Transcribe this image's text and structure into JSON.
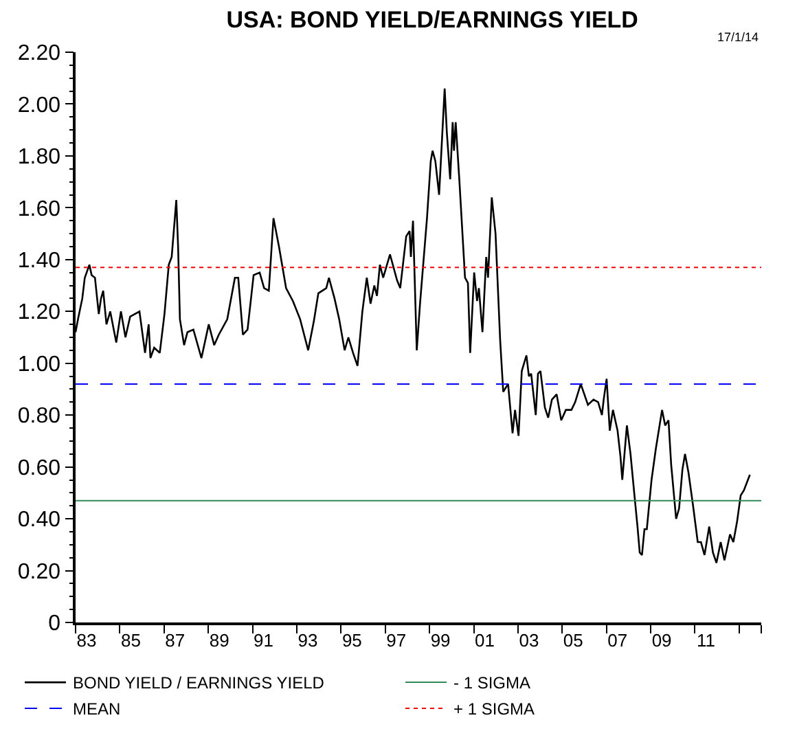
{
  "chart_data": {
    "type": "line",
    "title": "USA: BOND YIELD/EARNINGS YIELD",
    "annotations": [
      "17/1/14"
    ],
    "x": [
      "1983-01-01",
      "1983-02-10",
      "1983-04-22",
      "1983-06-02",
      "1983-08-17",
      "1983-09-23",
      "1983-11-17",
      "1984-01-19",
      "1984-02-25",
      "1984-04-01",
      "1984-05-25",
      "1984-07-26",
      "1984-11-03",
      "1985-01-19",
      "1985-04-04",
      "1985-06-20",
      "1985-11-21",
      "1986-02-21",
      "1986-04-22",
      "1986-05-21",
      "1986-07-22",
      "1986-10-22",
      "1987-01-08",
      "1987-03-20",
      "1987-05-07",
      "1987-07-22",
      "1987-08-21",
      "1987-09-20",
      "1987-11-28",
      "1988-01-22",
      "1988-04-29",
      "1988-09-09",
      "1989-01-08",
      "1989-04-08",
      "1989-06-23",
      "1989-11-10",
      "1990-03-16",
      "1990-05-10",
      "1990-07-26",
      "1990-10-11",
      "1991-01-19",
      "1991-04-29",
      "1991-07-11",
      "1991-09-27",
      "1991-12-13",
      "1992-03-13",
      "1992-07-08",
      "1992-10-29",
      "1993-02-25",
      "1993-07-08",
      "1993-10-08",
      "1993-12-23",
      "1994-05-03",
      "1994-06-16",
      "1994-09-16",
      "1994-12-02",
      "1995-03-02",
      "1995-05-03",
      "1995-07-19",
      "1995-10-01",
      "1995-12-20",
      "1996-03-02",
      "1996-05-03",
      "1996-07-04",
      "1996-08-17",
      "1996-10-04",
      "1996-11-28",
      "1997-03-20",
      "1997-07-15",
      "1997-09-05",
      "1997-12-13",
      "1998-02-07",
      "1998-02-28",
      "1998-04-04",
      "1998-06-05",
      "1998-07-29",
      "1998-11-21",
      "1999-01-22",
      "1999-02-21",
      "1999-04-08",
      "1999-06-09",
      "1999-09-09",
      "1999-10-15",
      "1999-12-09",
      "2000-01-19",
      "2000-02-10",
      "2000-03-09",
      "2000-05-10",
      "2000-08-10",
      "2000-09-27",
      "2000-11-03",
      "2001-01-08",
      "2001-02-25",
      "2001-03-27",
      "2001-05-25",
      "2001-07-26",
      "2001-08-25",
      "2001-10-26",
      "2001-12-27",
      "2002-03-13",
      "2002-05-03",
      "2002-07-22",
      "2002-10-04",
      "2002-11-14",
      "2003-01-11",
      "2003-03-05",
      "2003-05-21",
      "2003-07-01",
      "2003-08-07",
      "2003-10-22",
      "2003-11-28",
      "2004-01-08",
      "2004-03-20",
      "2004-05-14",
      "2004-07-15",
      "2004-10-01",
      "2004-12-16",
      "2005-03-02",
      "2005-06-02",
      "2005-08-03",
      "2005-11-03",
      "2006-03-02",
      "2006-06-02",
      "2006-08-17",
      "2006-10-19",
      "2006-11-17",
      "2007-01-04",
      "2007-02-25",
      "2007-04-19",
      "2007-07-04",
      "2007-08-21",
      "2007-09-20",
      "2007-12-05",
      "2008-02-03",
      "2008-04-04",
      "2008-05-28",
      "2008-07-04",
      "2008-08-10",
      "2008-09-20",
      "2008-10-29",
      "2009-01-15",
      "2009-03-27",
      "2009-07-08",
      "2009-08-28",
      "2009-10-22",
      "2009-12-05",
      "2010-02-25",
      "2010-04-15",
      "2010-06-09",
      "2010-07-22",
      "2010-09-16",
      "2010-12-02",
      "2011-02-17",
      "2011-04-11",
      "2011-06-09",
      "2011-08-25",
      "2011-10-26",
      "2011-12-23",
      "2012-03-02",
      "2012-05-03",
      "2012-08-03",
      "2012-09-27",
      "2012-11-28",
      "2013-01-26",
      "2013-03-20",
      "2013-06-27"
    ],
    "series": [
      {
        "name": "BOND YIELD / EARNINGS YIELD",
        "color": "#000000",
        "values": [
          1.12,
          1.17,
          1.25,
          1.33,
          1.38,
          1.34,
          1.33,
          1.19,
          1.25,
          1.28,
          1.15,
          1.2,
          1.08,
          1.2,
          1.1,
          1.18,
          1.2,
          1.04,
          1.15,
          1.02,
          1.06,
          1.04,
          1.19,
          1.38,
          1.41,
          1.63,
          1.45,
          1.17,
          1.07,
          1.12,
          1.13,
          1.02,
          1.15,
          1.07,
          1.11,
          1.17,
          1.33,
          1.33,
          1.11,
          1.13,
          1.34,
          1.35,
          1.29,
          1.28,
          1.56,
          1.45,
          1.29,
          1.24,
          1.17,
          1.05,
          1.16,
          1.27,
          1.29,
          1.33,
          1.25,
          1.17,
          1.05,
          1.1,
          1.04,
          0.99,
          1.2,
          1.33,
          1.23,
          1.3,
          1.26,
          1.38,
          1.33,
          1.42,
          1.32,
          1.29,
          1.49,
          1.51,
          1.41,
          1.55,
          1.05,
          1.23,
          1.56,
          1.78,
          1.82,
          1.78,
          1.65,
          2.06,
          1.89,
          1.71,
          1.93,
          1.82,
          1.93,
          1.7,
          1.33,
          1.31,
          1.04,
          1.35,
          1.24,
          1.29,
          1.12,
          1.41,
          1.33,
          1.64,
          1.5,
          1.09,
          0.89,
          0.92,
          0.73,
          0.82,
          0.72,
          0.97,
          1.03,
          0.95,
          0.96,
          0.8,
          0.96,
          0.97,
          0.83,
          0.79,
          0.86,
          0.88,
          0.78,
          0.82,
          0.82,
          0.85,
          0.92,
          0.84,
          0.86,
          0.85,
          0.8,
          0.86,
          0.94,
          0.74,
          0.82,
          0.74,
          0.64,
          0.55,
          0.76,
          0.65,
          0.5,
          0.37,
          0.27,
          0.26,
          0.36,
          0.36,
          0.55,
          0.67,
          0.82,
          0.76,
          0.78,
          0.61,
          0.4,
          0.44,
          0.59,
          0.65,
          0.58,
          0.45,
          0.31,
          0.31,
          0.26,
          0.37,
          0.27,
          0.23,
          0.31,
          0.24,
          0.34,
          0.31,
          0.39,
          0.49,
          0.51,
          0.57
        ]
      }
    ],
    "ref_lines": [
      {
        "axis": "y",
        "value": 0.47,
        "label": "- 1 SIGMA",
        "color": "#2e8b57",
        "line_style": "solid"
      },
      {
        "axis": "y",
        "value": 0.92,
        "label": "MEAN",
        "color": "#0000ff",
        "line_style": "dashed"
      },
      {
        "axis": "y",
        "value": 1.37,
        "label": "+ 1 SIGMA",
        "color": "#ff0000",
        "line_style": "dotted"
      }
    ],
    "xlim": [
      "1983-01-01",
      "2014-01-01"
    ],
    "xticks": [
      {
        "value": "1983-01-01",
        "label": null
      },
      {
        "value": "1983-07-02",
        "label": "83"
      },
      {
        "value": "1985-01-01",
        "label": null
      },
      {
        "value": "1985-07-02",
        "label": "85"
      },
      {
        "value": "1987-01-01",
        "label": null
      },
      {
        "value": "1987-07-02",
        "label": "87"
      },
      {
        "value": "1989-01-01",
        "label": null
      },
      {
        "value": "1989-07-02",
        "label": "89"
      },
      {
        "value": "1991-01-01",
        "label": null
      },
      {
        "value": "1991-07-02",
        "label": "91"
      },
      {
        "value": "1993-01-01",
        "label": null
      },
      {
        "value": "1993-07-02",
        "label": "93"
      },
      {
        "value": "1995-01-01",
        "label": null
      },
      {
        "value": "1995-07-02",
        "label": "95"
      },
      {
        "value": "1997-01-01",
        "label": null
      },
      {
        "value": "1997-07-02",
        "label": "97"
      },
      {
        "value": "1999-01-01",
        "label": null
      },
      {
        "value": "1999-07-02",
        "label": "99"
      },
      {
        "value": "2001-01-01",
        "label": null
      },
      {
        "value": "2001-07-02",
        "label": "01"
      },
      {
        "value": "2003-01-01",
        "label": null
      },
      {
        "value": "2003-07-02",
        "label": "03"
      },
      {
        "value": "2005-01-01",
        "label": null
      },
      {
        "value": "2005-07-02",
        "label": "05"
      },
      {
        "value": "2007-01-01",
        "label": null
      },
      {
        "value": "2007-07-02",
        "label": "07"
      },
      {
        "value": "2009-01-01",
        "label": null
      },
      {
        "value": "2009-07-02",
        "label": "09"
      },
      {
        "value": "2011-01-01",
        "label": null
      },
      {
        "value": "2011-07-02",
        "label": "11"
      },
      {
        "value": "2013-01-01",
        "label": null
      },
      {
        "value": "2014-01-01",
        "label": null
      }
    ],
    "ylim": [
      0,
      2.2
    ],
    "yticks": [
      {
        "value": 0,
        "label": "0"
      },
      {
        "value": 0.2,
        "label": "0.20"
      },
      {
        "value": 0.4,
        "label": "0.40"
      },
      {
        "value": 0.6,
        "label": "0.60"
      },
      {
        "value": 0.8,
        "label": "0.80"
      },
      {
        "value": 1.0,
        "label": "1.00"
      },
      {
        "value": 1.2,
        "label": "1.20"
      },
      {
        "value": 1.4,
        "label": "1.40"
      },
      {
        "value": 1.6,
        "label": "1.60"
      },
      {
        "value": 1.8,
        "label": "1.80"
      },
      {
        "value": 2.0,
        "label": "2.00"
      },
      {
        "value": 2.2,
        "label": "2.20"
      }
    ],
    "legend": "bottom",
    "marker": "none",
    "line_style": "solid"
  }
}
